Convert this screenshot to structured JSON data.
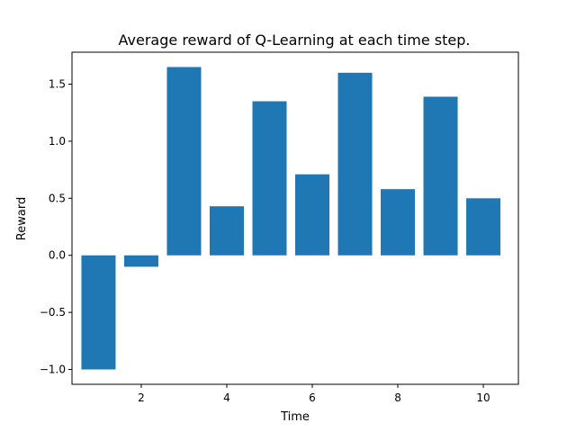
{
  "chart_data": {
    "type": "bar",
    "title": "Average reward of Q-Learning at each time step.",
    "xlabel": "Time",
    "ylabel": "Reward",
    "x": [
      1,
      2,
      3,
      4,
      5,
      6,
      7,
      8,
      9,
      10
    ],
    "values": [
      -1.0,
      -0.1,
      1.65,
      0.43,
      1.35,
      0.71,
      1.6,
      0.58,
      1.39,
      0.5
    ],
    "xlim": [
      0.38,
      10.82
    ],
    "ylim": [
      -1.13,
      1.78
    ],
    "xticks": [
      2,
      4,
      6,
      8,
      10
    ],
    "xtick_labels": [
      "2",
      "4",
      "6",
      "8",
      "10"
    ],
    "yticks": [
      -1.0,
      -0.5,
      0.0,
      0.5,
      1.0,
      1.5
    ],
    "ytick_labels": [
      "−1.0",
      "−0.5",
      "0.0",
      "0.5",
      "1.0",
      "1.5"
    ],
    "bar_color": "#1f77b4",
    "grid": false,
    "legend": "none"
  }
}
